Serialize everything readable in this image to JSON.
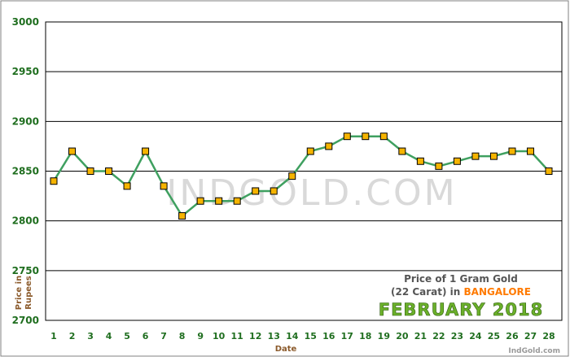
{
  "colors": {
    "line": "#3fa060",
    "marker_fill": "#f5b400",
    "marker_stroke": "#000000",
    "tick_text": "#1f6e1f",
    "axis_title": "#8b5a2b",
    "grid": "#000000",
    "highlight_city": "#ff7a00",
    "month_banner": "#6bb02a",
    "watermark": "#d9d9d9"
  },
  "chart_data": {
    "type": "line",
    "x": [
      1,
      2,
      3,
      4,
      5,
      6,
      7,
      8,
      9,
      10,
      11,
      12,
      13,
      14,
      15,
      16,
      17,
      18,
      19,
      20,
      21,
      22,
      23,
      24,
      25,
      26,
      27,
      28
    ],
    "series": [
      {
        "values": [
          2840,
          2870,
          2850,
          2850,
          2835,
          2870,
          2835,
          2805,
          2820,
          2820,
          2820,
          2830,
          2830,
          2845,
          2870,
          2875,
          2885,
          2885,
          2885,
          2870,
          2860,
          2855,
          2860,
          2865,
          2865,
          2870,
          2870,
          2850
        ]
      }
    ],
    "ylim": [
      2700,
      3000
    ],
    "yticks": [
      2700,
      2750,
      2800,
      2850,
      2900,
      2950,
      3000
    ],
    "xlabel": "Date",
    "ylabel_line1": "Price in",
    "ylabel_line2": "Rupees",
    "grid": true,
    "legend": {
      "line1": "Price of 1 Gram Gold",
      "line2_prefix": "(22 Carat) in",
      "city": "BANGALORE",
      "month": "FEBRUARY 2018"
    },
    "watermark": "INDGOLD.COM",
    "credit": "IndGold.com"
  }
}
